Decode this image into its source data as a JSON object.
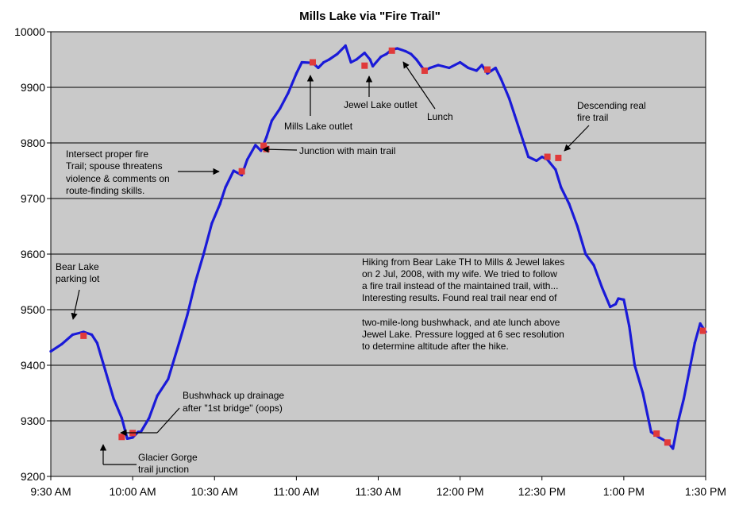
{
  "chart_data": {
    "type": "line",
    "title": "Mills Lake via \"Fire Trail\"",
    "xlabel": "",
    "ylabel": "",
    "x_unit": "time of day",
    "xlim": [
      "9:30 AM",
      "1:30 PM"
    ],
    "ylim": [
      9200,
      10000
    ],
    "y_ticks": [
      9200,
      9300,
      9400,
      9500,
      9600,
      9700,
      9800,
      9900,
      10000
    ],
    "x_ticks": [
      "9:30 AM",
      "10:00 AM",
      "10:30 AM",
      "11:00 AM",
      "11:30 AM",
      "12:00 PM",
      "12:30 PM",
      "1:00 PM",
      "1:30 PM"
    ],
    "grid": "horizontal",
    "legend": "none",
    "series_color": "#1a1ad8",
    "marker_color": "#e03a3a",
    "series": [
      {
        "x": [
          "9:30",
          "9:34",
          "9:38",
          "9:42",
          "9:45",
          "9:47",
          "9:50",
          "9:53",
          "9:56",
          "9:58",
          "10:00",
          "10:02",
          "10:03",
          "10:06",
          "10:09",
          "10:13",
          "10:17",
          "10:20",
          "10:23",
          "10:26",
          "10:29",
          "10:32",
          "10:34",
          "10:37",
          "10:40",
          "10:42",
          "10:45",
          "10:47",
          "10:49",
          "10:51",
          "10:54",
          "10:57",
          "11:00",
          "11:02",
          "11:06",
          "11:08",
          "11:10",
          "11:12",
          "11:15",
          "11:18",
          "11:20",
          "11:22",
          "11:25",
          "11:27",
          "11:28",
          "11:31",
          "11:33",
          "11:35",
          "11:37",
          "11:40",
          "11:42",
          "11:44",
          "11:47",
          "11:49",
          "11:52",
          "11:56",
          "12:00",
          "12:03",
          "12:06",
          "12:08",
          "12:10",
          "12:13",
          "12:15",
          "12:18",
          "12:20",
          "12:22",
          "12:25",
          "12:28",
          "12:30",
          "12:32",
          "12:35",
          "12:37",
          "12:40",
          "12:43",
          "12:46",
          "12:49",
          "12:52",
          "12:55",
          "12:57",
          "12:58",
          "13:00",
          "13:02",
          "13:04",
          "13:07",
          "13:10",
          "13:13",
          "13:16",
          "13:18",
          "13:20",
          "13:22",
          "13:24",
          "13:26",
          "13:28",
          "13:30"
        ],
        "y": [
          9425,
          9438,
          9455,
          9460,
          9455,
          9440,
          9390,
          9340,
          9305,
          9268,
          9270,
          9280,
          9280,
          9305,
          9345,
          9375,
          9440,
          9490,
          9550,
          9600,
          9655,
          9690,
          9720,
          9750,
          9742,
          9770,
          9796,
          9786,
          9810,
          9840,
          9862,
          9890,
          9925,
          9945,
          9944,
          9935,
          9945,
          9950,
          9960,
          9975,
          9945,
          9950,
          9962,
          9950,
          9938,
          9955,
          9960,
          9968,
          9970,
          9965,
          9960,
          9950,
          9930,
          9935,
          9940,
          9935,
          9945,
          9935,
          9930,
          9940,
          9925,
          9935,
          9915,
          9880,
          9850,
          9820,
          9775,
          9768,
          9775,
          9770,
          9752,
          9720,
          9690,
          9650,
          9600,
          9580,
          9540,
          9505,
          9510,
          9520,
          9518,
          9470,
          9400,
          9350,
          9280,
          9270,
          9262,
          9250,
          9300,
          9340,
          9390,
          9440,
          9475,
          9460
        ]
      }
    ],
    "markers": {
      "x": [
        "9:42",
        "9:56",
        "10:00",
        "10:40",
        "10:48",
        "10:49",
        "11:06",
        "11:25",
        "11:35",
        "11:47",
        "12:10",
        "12:32",
        "12:36",
        "13:12",
        "13:16",
        "13:29"
      ],
      "y": [
        9453,
        9271,
        9278,
        9749,
        9795,
        9789,
        9945,
        9939,
        9966,
        9930,
        9932,
        9775,
        9773,
        9277,
        9261,
        9462
      ]
    },
    "annotations": [
      {
        "id": "bear-lake",
        "lines": [
          "Bear Lake",
          "parking lot"
        ]
      },
      {
        "id": "glacier-gorge",
        "lines": [
          "Glacier Gorge",
          "trail junction"
        ]
      },
      {
        "id": "bushwhack",
        "lines": [
          "Bushwhack up drainage",
          "after \"1st bridge\" (oops)"
        ]
      },
      {
        "id": "intersect",
        "lines": [
          "Intersect proper fire",
          "Trail; spouse threatens",
          "violence & comments on",
          "route-finding skills."
        ]
      },
      {
        "id": "junction",
        "lines": [
          "Junction with main trail"
        ]
      },
      {
        "id": "mills-outlet",
        "lines": [
          "Mills Lake outlet"
        ]
      },
      {
        "id": "jewel-outlet",
        "lines": [
          "Jewel Lake outlet"
        ]
      },
      {
        "id": "lunch",
        "lines": [
          "Lunch"
        ]
      },
      {
        "id": "descending",
        "lines": [
          "Descending real",
          "fire trail"
        ]
      },
      {
        "id": "notes",
        "lines": [
          "Hiking from Bear Lake TH to Mills & Jewel lakes",
          "on 2 Jul, 2008, with my wife. We tried to follow",
          "a fire trail instead of the maintained trail, with...",
          "Interesting results. Found real trail near end of",
          "",
          "two-mile-long bushwhack, and ate lunch above",
          "Jewel Lake. Pressure logged at 6 sec resolution",
          "to determine altitude after the hike."
        ]
      }
    ]
  }
}
